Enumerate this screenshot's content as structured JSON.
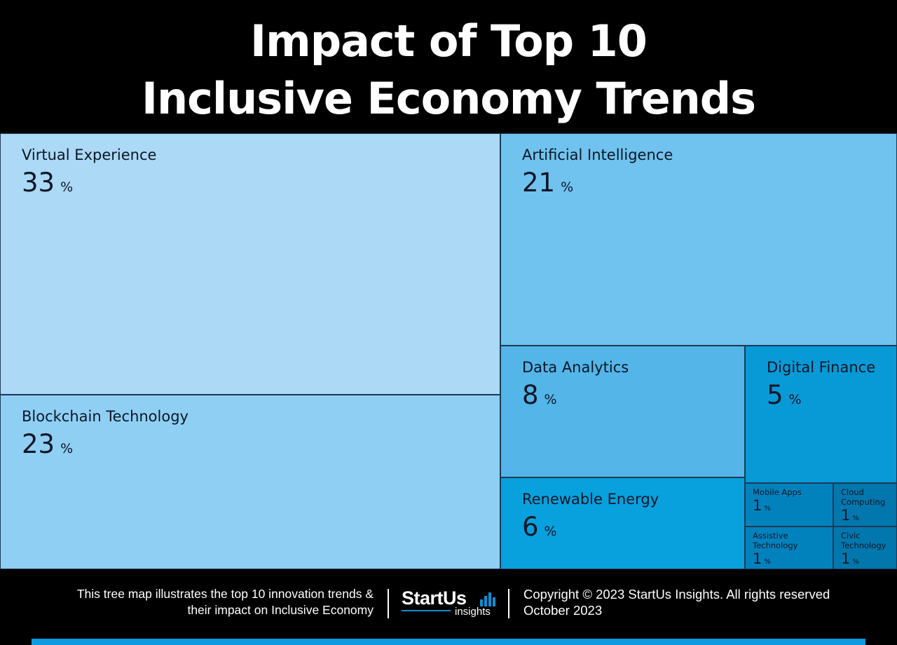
{
  "title": {
    "line1": "Impact of Top 10",
    "line2": "Inclusive Economy Trends"
  },
  "chart_data": {
    "type": "treemap",
    "unit": "%",
    "items": [
      {
        "name": "Virtual Experience",
        "value": 33,
        "color": "#abd9f6"
      },
      {
        "name": "Blockchain Technology",
        "value": 23,
        "color": "#8fcff3"
      },
      {
        "name": "Artificial Intelligence",
        "value": 21,
        "color": "#70c3ee"
      },
      {
        "name": "Data Analytics",
        "value": 8,
        "color": "#53b5e8"
      },
      {
        "name": "Digital Finance",
        "value": 5,
        "color": "#0899d7"
      },
      {
        "name": "Renewable Energy",
        "value": 6,
        "color": "#08a0dd"
      },
      {
        "name": "Mobile Apps",
        "value": 1,
        "color": "#0282bd"
      },
      {
        "name": "Cloud Computing",
        "value": 1,
        "color": "#0277ad"
      },
      {
        "name": "Assistive Technology",
        "value": 1,
        "color": "#0282bd"
      },
      {
        "name": "Civic Technology",
        "value": 1,
        "color": "#0277ad"
      }
    ]
  },
  "footer": {
    "description_line1": "This tree map illustrates the top 10 innovation trends &",
    "description_line2": "their impact on Inclusive Economy",
    "logo_text": "StartUs",
    "logo_sub": "insights",
    "copyright": "Copyright © 2023 StartUs Insights. All rights reserved",
    "date": "October 2023"
  },
  "colors": {
    "background": "#000000",
    "accent": "#0d9ae0"
  }
}
